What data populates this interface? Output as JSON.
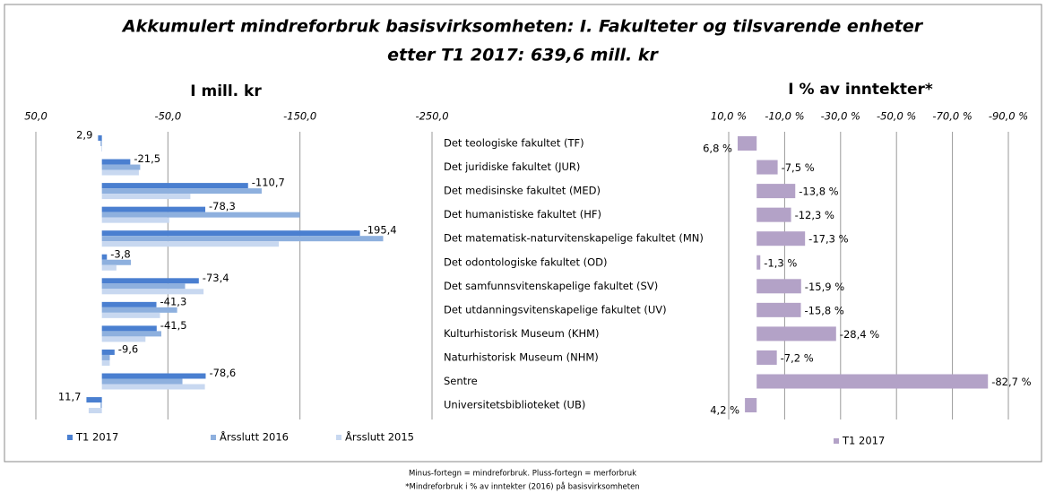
{
  "header": {
    "title": [
      "Akkumulert mindreforbruk basisvirksomheten: I. Fakulteter og tilsvarende enheter",
      "etter T1 2017:  639,6 mill. kr"
    ]
  },
  "chart_data": [
    {
      "type": "bar",
      "orientation": "horizontal",
      "title": "I mill. kr",
      "categories": [
        "Det teologiske fakultet (TF)",
        "Det juridiske fakultet (JUR)",
        "Det medisinske fakultet (MED)",
        "Det humanistiske fakultet (HF)",
        "Det matematisk-naturvitenskapelige fakultet (MN)",
        "Det odontologiske fakultet (OD)",
        "Det samfunnsvitenskapelige fakultet (SV)",
        "Det utdanningsvitenskapelige fakultet (UV)",
        "Kulturhistorisk Museum (KHM)",
        "Naturhistorisk Museum (NHM)",
        "Sentre",
        "Universitetsbiblioteket (UB)"
      ],
      "xlim": [
        50,
        -250
      ],
      "xticks": [
        {
          "value": 50,
          "label": "50,0"
        },
        {
          "value": -50,
          "label": "-50,0"
        },
        {
          "value": -150,
          "label": "-150,0"
        },
        {
          "value": -250,
          "label": "-250,0"
        }
      ],
      "grid": true,
      "legend": "bottom",
      "series": [
        {
          "name": "T1 2017",
          "color": "#4a7fd0",
          "values": [
            2.9,
            -21.5,
            -110.7,
            -78.3,
            -195.4,
            -3.8,
            -73.4,
            -41.3,
            -41.5,
            -9.6,
            -78.6,
            11.7
          ],
          "value_labels": [
            "2,9",
            "-21,5",
            "-110,7",
            "-78,3",
            "-195,4",
            "-3,8",
            "-73,4",
            "-41,3",
            "-41,5",
            "-9,6",
            "-78,6",
            "11,7"
          ]
        },
        {
          "name": "Årsslutt 2016",
          "color": "#8eb0de",
          "values": [
            1,
            -29,
            -121,
            -150,
            -213,
            -22,
            -63,
            -57,
            -45,
            -6,
            -61,
            1
          ]
        },
        {
          "name": "Årsslutt 2015",
          "color": "#c8d8f0",
          "values": [
            0.5,
            -28,
            -67,
            -51,
            -134,
            -11,
            -77,
            -44,
            -33,
            -6,
            -78,
            10
          ]
        }
      ]
    },
    {
      "type": "bar",
      "orientation": "horizontal",
      "title": "I % av inntekter*",
      "xlim": [
        10,
        -90
      ],
      "xticks": [
        {
          "value": 10,
          "label": "10,0 %"
        },
        {
          "value": -10,
          "label": "-10,0 %"
        },
        {
          "value": -30,
          "label": "-30,0 %"
        },
        {
          "value": -50,
          "label": "-50,0 %"
        },
        {
          "value": -70,
          "label": "-70,0 %"
        },
        {
          "value": -90,
          "label": "-90,0 %"
        }
      ],
      "grid": true,
      "legend": "bottom",
      "series": [
        {
          "name": "T1 2017",
          "color": "#b3a2c7",
          "values": [
            6.8,
            -7.5,
            -13.8,
            -12.3,
            -17.3,
            -1.3,
            -15.9,
            -15.8,
            -28.4,
            -7.2,
            -82.7,
            4.2
          ],
          "value_labels": [
            "6,8 %",
            "-7,5 %",
            "-13,8 %",
            "-12,3 %",
            "-17,3 %",
            "-1,3 %",
            "-15,9 %",
            "-15,8 %",
            "-28,4 %",
            "-7,2 %",
            "-82,7 %",
            "4,2 %"
          ]
        }
      ]
    }
  ],
  "footnotes": [
    "Minus-fortegn = mindreforbruk. Pluss-fortegn = merforbruk",
    "*Mindreforbruk i % av inntekter (2016) på basisvirksomheten"
  ]
}
